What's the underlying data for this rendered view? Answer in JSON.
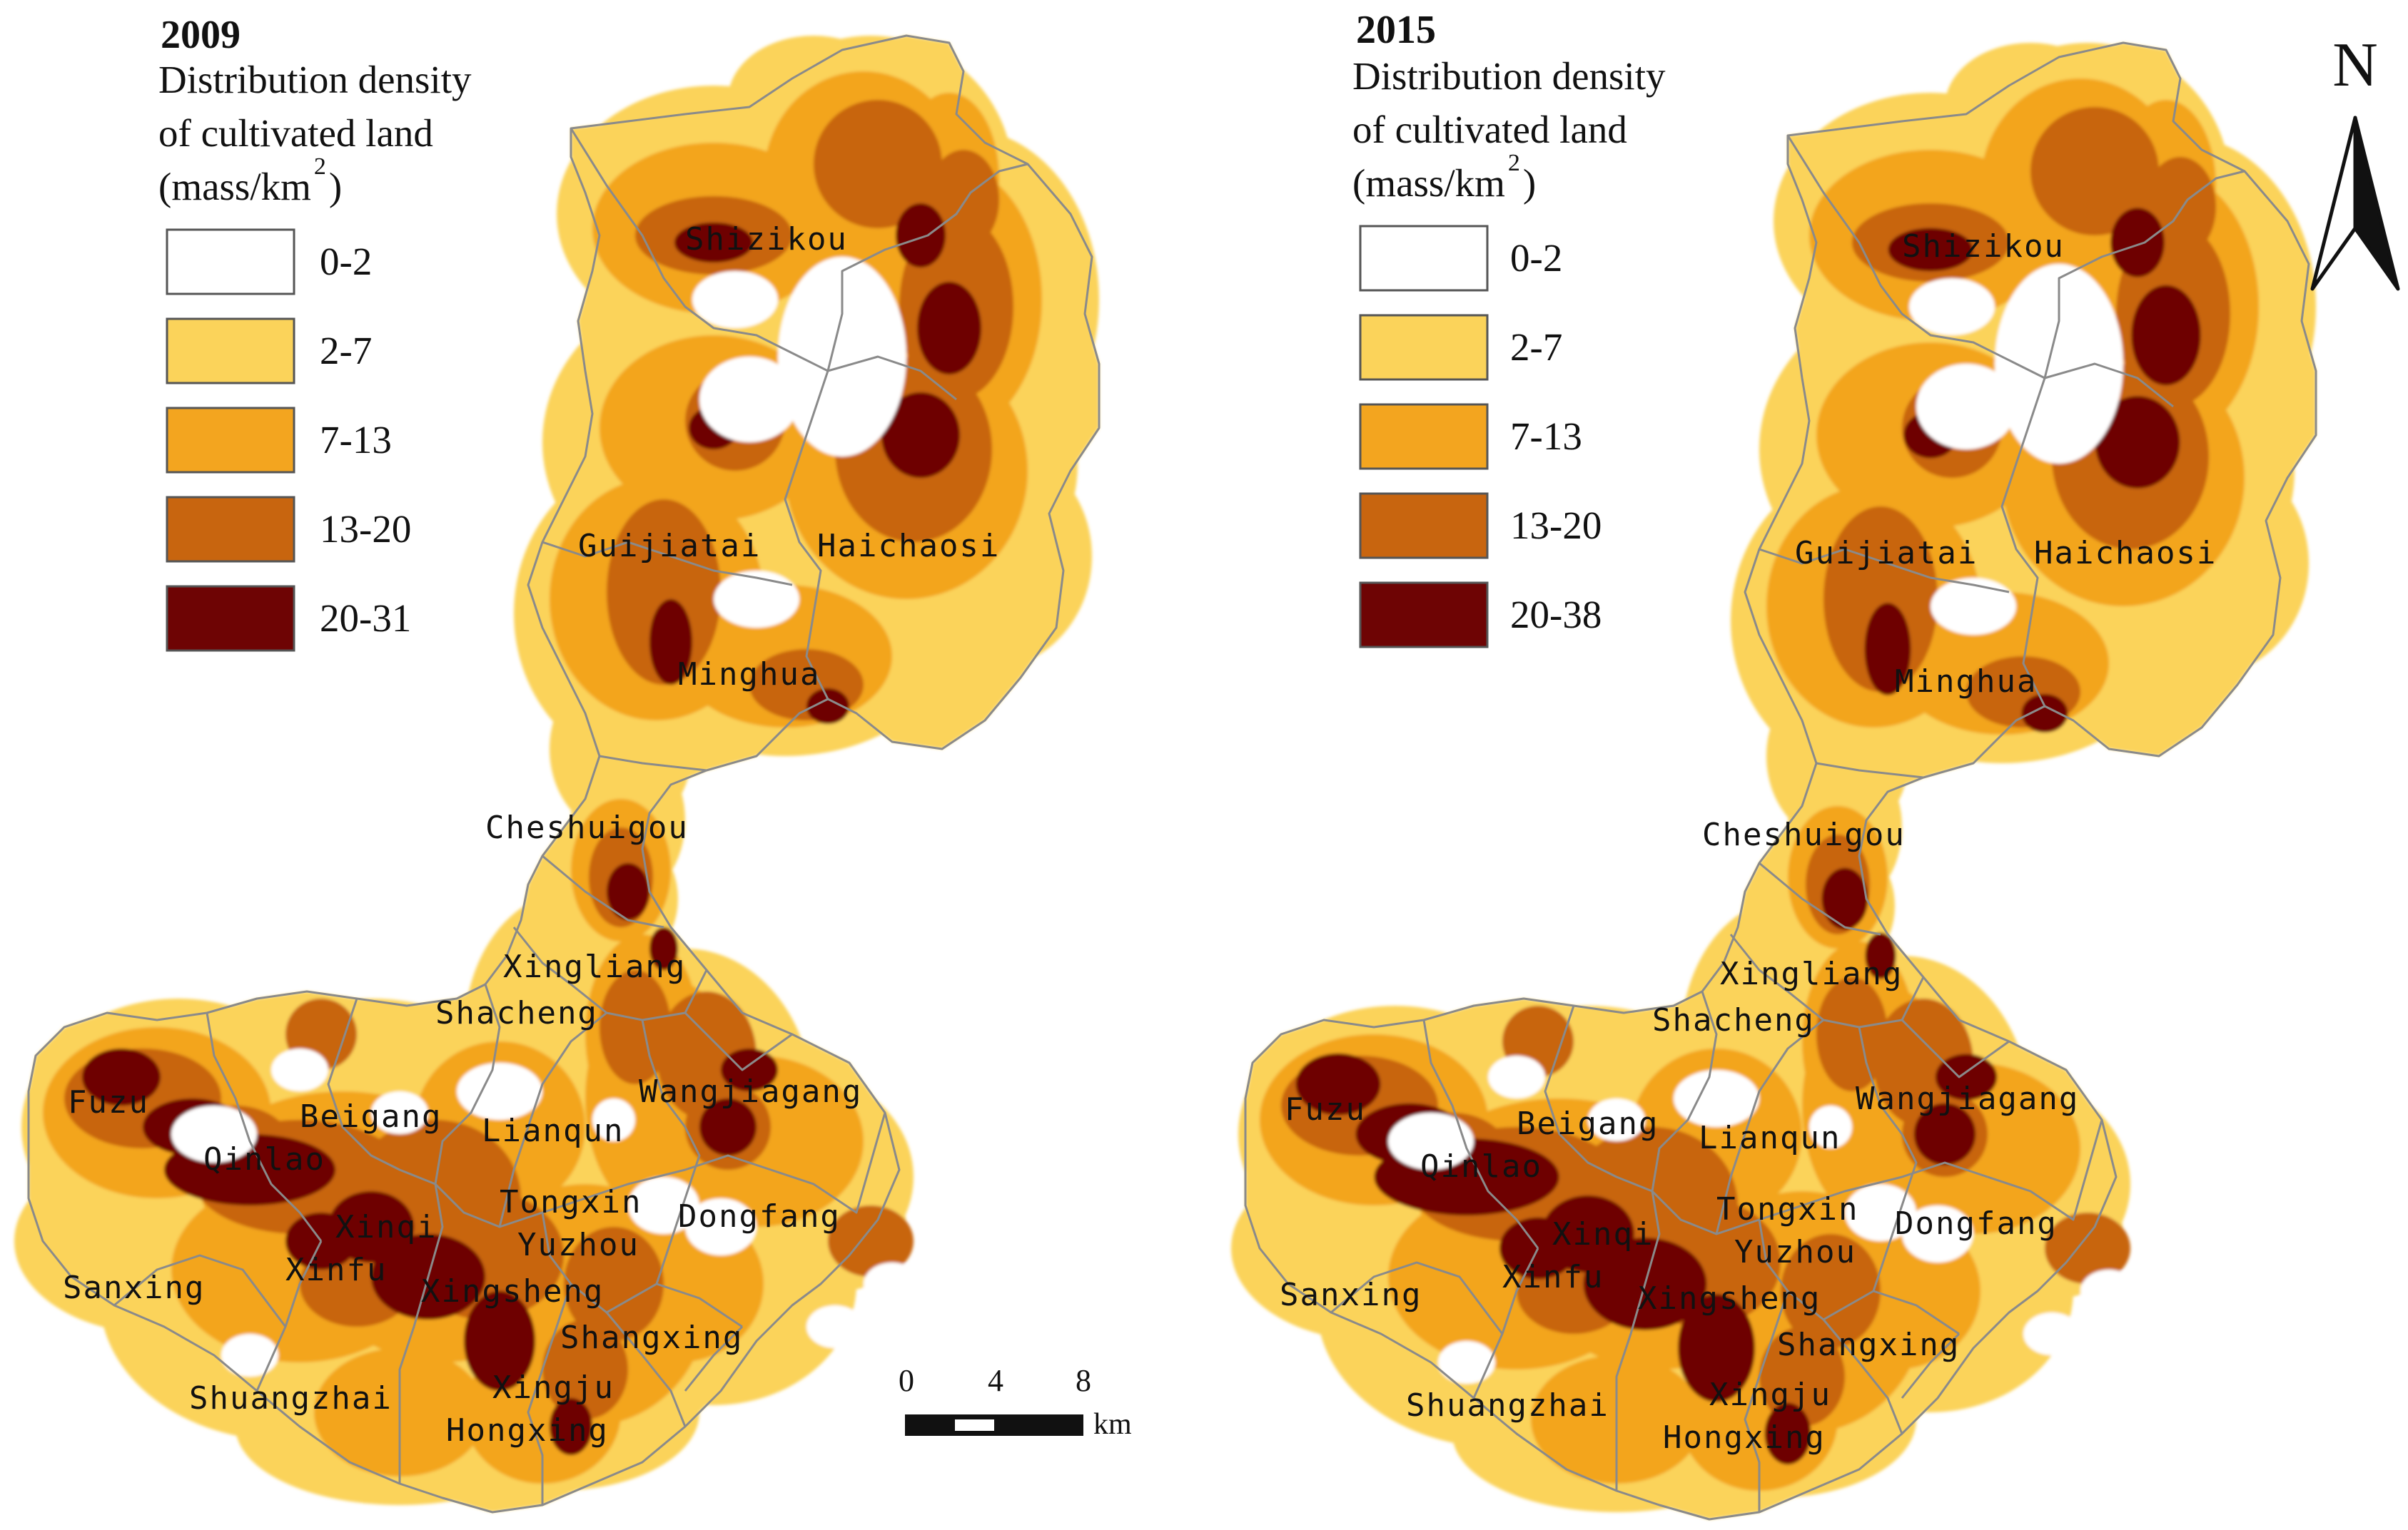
{
  "colors": {
    "class_0": "#ffffff",
    "class_1": "#fbd35a",
    "class_2": "#f3a51f",
    "class_3": "#c8650f",
    "class_4": "#6e0404",
    "boundary": "#8a8a8a",
    "text": "#111111"
  },
  "maps": [
    {
      "id": "map-2009",
      "year": "2009",
      "legend": {
        "title_lines": [
          "Distribution density",
          "of cultivated land",
          "(mass/km",
          ")"
        ],
        "title_superscript": "2",
        "classes": [
          "0-2",
          "2-7",
          "7-13",
          "13-20",
          "20-31"
        ]
      },
      "towns": [
        "Shizikou",
        "Guijiatai",
        "Haichaosi",
        "Minghua",
        "Cheshuigou",
        "Xingliang",
        "Shacheng",
        "Wangjiagang",
        "Fuzu",
        "Beigang",
        "Lianqun",
        "Qinlao",
        "Tongxin",
        "Dongfang",
        "Xinqi",
        "Yuzhou",
        "Xinfu",
        "Xingsheng",
        "Sanxing",
        "Shangxing",
        "Xingju",
        "Shuangzhai",
        "Hongxing"
      ]
    },
    {
      "id": "map-2015",
      "year": "2015",
      "legend": {
        "title_lines": [
          "Distribution density",
          "of cultivated land",
          "(mass/km",
          ")"
        ],
        "title_superscript": "2",
        "classes": [
          "0-2",
          "2-7",
          "7-13",
          "13-20",
          "20-38"
        ]
      },
      "towns": [
        "Shizikou",
        "Guijiatai",
        "Haichaosi",
        "Minghua",
        "Cheshuigou",
        "Xingliang",
        "Shacheng",
        "Wangjiagang",
        "Fuzu",
        "Beigang",
        "Lianqun",
        "Qinlao",
        "Tongxin",
        "Dongfang",
        "Xinqi",
        "Yuzhou",
        "Xinfu",
        "Xingsheng",
        "Sanxing",
        "Shangxing",
        "Xingju",
        "Shuangzhai",
        "Hongxing"
      ]
    }
  ],
  "north_arrow": {
    "label": "N"
  },
  "scale_bar": {
    "ticks": [
      "0",
      "4",
      "8"
    ],
    "unit": "km"
  }
}
